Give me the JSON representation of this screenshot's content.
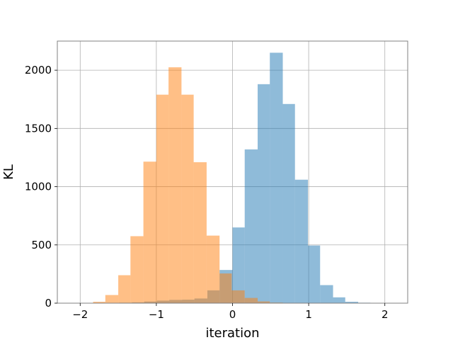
{
  "chart_data": {
    "type": "bar",
    "subtype": "overlapping-histogram",
    "title": "",
    "xlabel": "iteration",
    "ylabel": "KL",
    "xlim": [
      -2.3,
      2.3
    ],
    "ylim": [
      0,
      2250
    ],
    "grid": true,
    "legend": "none",
    "bar_alpha": 0.5,
    "xticks": [
      -2,
      -1,
      0,
      1,
      2
    ],
    "xtick_labels": [
      "−2",
      "−1",
      "0",
      "1",
      "2"
    ],
    "yticks": [
      0,
      500,
      1000,
      1500,
      2000
    ],
    "ytick_labels": [
      "0",
      "500",
      "1000",
      "1500",
      "2000"
    ],
    "series": [
      {
        "color": "#1f77b4",
        "bin_edges": [
          -1.82,
          -1.65,
          -1.49,
          -1.32,
          -1.16,
          -0.99,
          -0.83,
          -0.66,
          -0.5,
          -0.33,
          -0.17,
          0.0,
          0.16,
          0.33,
          0.49,
          0.66,
          0.82,
          0.99,
          1.15,
          1.32,
          1.48,
          1.65,
          1.81,
          1.98,
          2.14
        ],
        "counts": [
          1,
          2,
          4,
          7,
          14,
          22,
          28,
          30,
          40,
          110,
          285,
          650,
          1320,
          1880,
          2150,
          1710,
          1060,
          495,
          155,
          50,
          12,
          4,
          2,
          1
        ]
      },
      {
        "color": "#ff7f0e",
        "bin_edges": [
          -2.0,
          -1.83,
          -1.67,
          -1.5,
          -1.34,
          -1.17,
          -1.0,
          -0.84,
          -0.67,
          -0.51,
          -0.34,
          -0.17,
          -0.01,
          0.16,
          0.33,
          0.49,
          0.66
        ],
        "counts": [
          3,
          12,
          70,
          240,
          575,
          1215,
          1790,
          2025,
          1790,
          1210,
          580,
          255,
          110,
          45,
          15,
          5
        ]
      }
    ]
  }
}
